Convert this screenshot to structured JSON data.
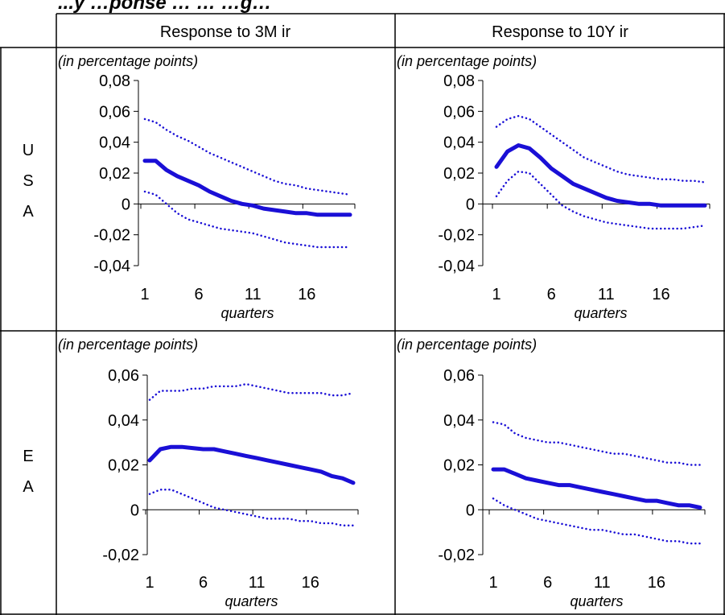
{
  "page": {
    "title": "...y …ponse … … …g…"
  },
  "columns": [
    "Response to 3M ir",
    "Response to 10Y ir"
  ],
  "rows": [
    {
      "label_chars": [
        "U",
        "S",
        "A"
      ]
    },
    {
      "label_chars": [
        "E",
        "A"
      ]
    }
  ],
  "chart_data": [
    {
      "type": "line",
      "row": "USA",
      "column": "Response to 3M ir",
      "subtitle": "(in percentage points)",
      "xlabel": "quarters",
      "x": [
        1,
        2,
        3,
        4,
        5,
        6,
        7,
        8,
        9,
        10,
        11,
        12,
        13,
        14,
        15,
        16,
        17,
        18,
        19,
        20
      ],
      "xticks": [
        1,
        6,
        11,
        16
      ],
      "ylim": [
        -0.04,
        0.08
      ],
      "yticks": [
        -0.04,
        -0.02,
        0,
        0.02,
        0.04,
        0.06,
        0.08
      ],
      "ytick_labels": [
        "-0,04",
        "-0,02",
        "0",
        "0,02",
        "0,04",
        "0,06",
        "0,08"
      ],
      "series": [
        {
          "style": "solid",
          "values": [
            0.028,
            0.028,
            0.022,
            0.018,
            0.015,
            0.012,
            0.008,
            0.005,
            0.002,
            0.0,
            -0.001,
            -0.003,
            -0.004,
            -0.005,
            -0.006,
            -0.006,
            -0.007,
            -0.007,
            -0.007,
            -0.007
          ]
        },
        {
          "style": "dotted",
          "values": [
            0.055,
            0.053,
            0.048,
            0.044,
            0.041,
            0.037,
            0.033,
            0.03,
            0.027,
            0.024,
            0.021,
            0.018,
            0.015,
            0.013,
            0.012,
            0.01,
            0.009,
            0.008,
            0.007,
            0.006
          ]
        },
        {
          "style": "dotted",
          "values": [
            0.008,
            0.006,
            0.0,
            -0.006,
            -0.01,
            -0.012,
            -0.014,
            -0.016,
            -0.017,
            -0.018,
            -0.019,
            -0.021,
            -0.023,
            -0.025,
            -0.026,
            -0.027,
            -0.028,
            -0.028,
            -0.028,
            -0.028
          ]
        }
      ],
      "color": "#1a0fd6"
    },
    {
      "type": "line",
      "row": "USA",
      "column": "Response to 10Y ir",
      "subtitle": "(in percentage points)",
      "xlabel": "quarters",
      "x": [
        1,
        2,
        3,
        4,
        5,
        6,
        7,
        8,
        9,
        10,
        11,
        12,
        13,
        14,
        15,
        16,
        17,
        18,
        19,
        20
      ],
      "xticks": [
        1,
        6,
        11,
        16
      ],
      "ylim": [
        -0.04,
        0.08
      ],
      "yticks": [
        -0.04,
        -0.02,
        0,
        0.02,
        0.04,
        0.06,
        0.08
      ],
      "ytick_labels": [
        "-0,04",
        "-0,02",
        "0",
        "0,02",
        "0,04",
        "0,06",
        "0,08"
      ],
      "series": [
        {
          "style": "solid",
          "values": [
            0.024,
            0.034,
            0.038,
            0.036,
            0.03,
            0.023,
            0.018,
            0.013,
            0.01,
            0.007,
            0.004,
            0.002,
            0.001,
            0.0,
            0.0,
            -0.001,
            -0.001,
            -0.001,
            -0.001,
            -0.001
          ]
        },
        {
          "style": "dotted",
          "values": [
            0.05,
            0.055,
            0.057,
            0.055,
            0.05,
            0.045,
            0.04,
            0.035,
            0.03,
            0.027,
            0.024,
            0.021,
            0.019,
            0.018,
            0.017,
            0.016,
            0.016,
            0.015,
            0.015,
            0.014
          ]
        },
        {
          "style": "dotted",
          "values": [
            0.005,
            0.015,
            0.021,
            0.02,
            0.013,
            0.006,
            -0.001,
            -0.005,
            -0.008,
            -0.01,
            -0.012,
            -0.013,
            -0.014,
            -0.015,
            -0.016,
            -0.016,
            -0.016,
            -0.016,
            -0.015,
            -0.014
          ]
        }
      ],
      "color": "#1a0fd6"
    },
    {
      "type": "line",
      "row": "EA",
      "column": "Response to 3M ir",
      "subtitle": "(in percentage points)",
      "xlabel": "quarters",
      "x": [
        1,
        2,
        3,
        4,
        5,
        6,
        7,
        8,
        9,
        10,
        11,
        12,
        13,
        14,
        15,
        16,
        17,
        18,
        19,
        20
      ],
      "xticks": [
        1,
        6,
        11,
        16
      ],
      "ylim": [
        -0.02,
        0.06
      ],
      "yticks": [
        -0.02,
        0,
        0.02,
        0.04,
        0.06
      ],
      "ytick_labels": [
        "-0,02",
        "0",
        "0,02",
        "0,04",
        "0,06"
      ],
      "series": [
        {
          "style": "solid",
          "values": [
            0.022,
            0.027,
            0.028,
            0.028,
            0.0275,
            0.027,
            0.027,
            0.026,
            0.025,
            0.024,
            0.023,
            0.022,
            0.021,
            0.02,
            0.019,
            0.018,
            0.017,
            0.015,
            0.014,
            0.012
          ]
        },
        {
          "style": "dotted",
          "values": [
            0.049,
            0.053,
            0.053,
            0.053,
            0.054,
            0.054,
            0.055,
            0.055,
            0.055,
            0.056,
            0.055,
            0.054,
            0.053,
            0.052,
            0.052,
            0.052,
            0.052,
            0.051,
            0.051,
            0.052
          ]
        },
        {
          "style": "dotted",
          "values": [
            0.007,
            0.009,
            0.009,
            0.007,
            0.005,
            0.003,
            0.001,
            0.0,
            -0.001,
            -0.002,
            -0.003,
            -0.004,
            -0.004,
            -0.004,
            -0.005,
            -0.005,
            -0.006,
            -0.006,
            -0.007,
            -0.007
          ]
        }
      ],
      "color": "#1a0fd6"
    },
    {
      "type": "line",
      "row": "EA",
      "column": "Response to 10Y ir",
      "subtitle": "(in percentage points)",
      "xlabel": "quarters",
      "x": [
        1,
        2,
        3,
        4,
        5,
        6,
        7,
        8,
        9,
        10,
        11,
        12,
        13,
        14,
        15,
        16,
        17,
        18,
        19,
        20
      ],
      "xticks": [
        1,
        6,
        11,
        16
      ],
      "ylim": [
        -0.02,
        0.06
      ],
      "yticks": [
        -0.02,
        0,
        0.02,
        0.04,
        0.06
      ],
      "ytick_labels": [
        "-0,02",
        "0",
        "0,02",
        "0,04",
        "0,06"
      ],
      "series": [
        {
          "style": "solid",
          "values": [
            0.018,
            0.018,
            0.016,
            0.014,
            0.013,
            0.012,
            0.011,
            0.011,
            0.01,
            0.009,
            0.008,
            0.007,
            0.006,
            0.005,
            0.004,
            0.004,
            0.003,
            0.002,
            0.002,
            0.001
          ]
        },
        {
          "style": "dotted",
          "values": [
            0.039,
            0.038,
            0.034,
            0.032,
            0.031,
            0.03,
            0.03,
            0.029,
            0.028,
            0.027,
            0.026,
            0.025,
            0.025,
            0.024,
            0.023,
            0.022,
            0.021,
            0.021,
            0.02,
            0.02
          ]
        },
        {
          "style": "dotted",
          "values": [
            0.005,
            0.002,
            0.0,
            -0.002,
            -0.004,
            -0.005,
            -0.006,
            -0.007,
            -0.008,
            -0.009,
            -0.009,
            -0.01,
            -0.011,
            -0.011,
            -0.012,
            -0.013,
            -0.014,
            -0.014,
            -0.015,
            -0.015
          ]
        }
      ],
      "color": "#1a0fd6"
    }
  ]
}
